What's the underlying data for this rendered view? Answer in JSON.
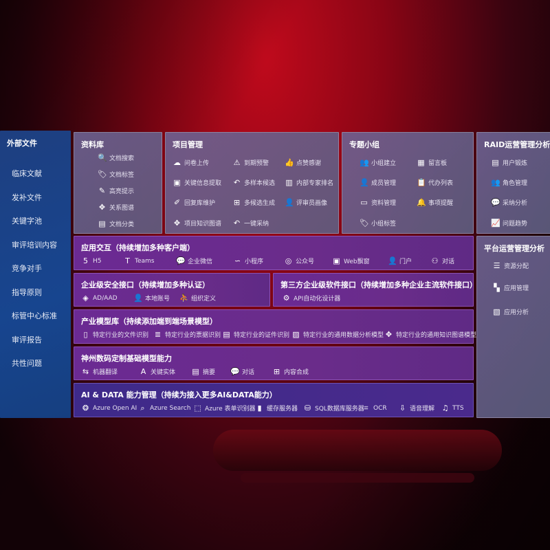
{
  "sidebar": {
    "title": "外部文件",
    "items": [
      "临床文献",
      "发补文件",
      "关键字池",
      "审评培训内容",
      "竞争对手",
      "指导原则",
      "标管中心标准",
      "审评报告",
      "共性问题"
    ]
  },
  "panels": {
    "library": {
      "title": "资料库",
      "items": [
        {
          "label": "文档搜索",
          "icon": "file-search-icon"
        },
        {
          "label": "文档标签",
          "icon": "tag-icon"
        },
        {
          "label": "高亮提示",
          "icon": "pen-icon"
        },
        {
          "label": "关系图谱",
          "icon": "graph-icon"
        },
        {
          "label": "文档分类",
          "icon": "document-stack-icon"
        }
      ]
    },
    "project": {
      "title": "项目管理",
      "items": [
        {
          "label": "问卷上传",
          "icon": "cloud-upload-icon"
        },
        {
          "label": "到期预警",
          "icon": "alarm-icon"
        },
        {
          "label": "点赞感谢",
          "icon": "thumbs-up-icon"
        },
        {
          "label": "关键信息提取",
          "icon": "window-icon"
        },
        {
          "label": "多样本候选",
          "icon": "reply-icon"
        },
        {
          "label": "内部专家排名",
          "icon": "podium-icon"
        },
        {
          "label": "回复库维护",
          "icon": "edit-icon"
        },
        {
          "label": "多候选生成",
          "icon": "puzzle-icon"
        },
        {
          "label": "评审员画像",
          "icon": "person-icon"
        },
        {
          "label": "项目知识图谱",
          "icon": "graph-icon"
        },
        {
          "label": "一键采纳",
          "icon": "reply-icon"
        }
      ]
    },
    "group": {
      "title": "专题小组",
      "items": [
        {
          "label": "小组建立",
          "icon": "group-icon"
        },
        {
          "label": "留言板",
          "icon": "bbs-icon"
        },
        {
          "label": "成员管理",
          "icon": "user-add-icon"
        },
        {
          "label": "代办列表",
          "icon": "clipboard-icon"
        },
        {
          "label": "资料管理",
          "icon": "folder-icon"
        },
        {
          "label": "事项提醒",
          "icon": "bell-icon"
        },
        {
          "label": "小组标签",
          "icon": "tag-icon"
        }
      ]
    },
    "raid": {
      "title": "RAID运营管理分析",
      "items": [
        {
          "label": "用户锻炼",
          "icon": "id-card-icon"
        },
        {
          "label": "角色管理",
          "icon": "users-icon"
        },
        {
          "label": "采纳分析",
          "icon": "qa-icon"
        },
        {
          "label": "问题趋势",
          "icon": "trend-icon"
        }
      ]
    },
    "platform": {
      "title": "平台运营管理分析",
      "items": [
        {
          "label": "资源分配",
          "icon": "checklist-icon"
        },
        {
          "label": "应用管理",
          "icon": "apps-icon"
        },
        {
          "label": "应用分析",
          "icon": "analysis-icon"
        }
      ]
    },
    "app": {
      "title": "应用交互（持续增加多种客户端）",
      "items": [
        {
          "label": "H5",
          "icon": "html5-icon"
        },
        {
          "label": "Teams",
          "icon": "teams-icon"
        },
        {
          "label": "企业微信",
          "icon": "wecom-icon"
        },
        {
          "label": "小程序",
          "icon": "miniprogram-icon"
        },
        {
          "label": "公众号",
          "icon": "official-account-icon"
        },
        {
          "label": "Web飘窗",
          "icon": "window-icon"
        },
        {
          "label": "门户",
          "icon": "portal-icon"
        },
        {
          "label": "对话",
          "icon": "chat-people-icon"
        }
      ]
    },
    "security": {
      "title": "企业级安全接口（持续增加多种认证）",
      "items": [
        {
          "label": "AD/AAD",
          "icon": "ad-icon"
        },
        {
          "label": "本地账号",
          "icon": "user-icon"
        },
        {
          "label": "组织定义",
          "icon": "org-icon"
        }
      ]
    },
    "thirdparty": {
      "title": "第三方企业级软件接口（持续增加多种企业主流软件接口）",
      "items": [
        {
          "label": "API自动化设计器",
          "icon": "gear-icon"
        }
      ]
    },
    "industry": {
      "title": "产业模型库（持续添加端到端场景模型）",
      "items": [
        {
          "label": "特定行业的文件识别",
          "icon": "file-icon"
        },
        {
          "label": "特定行业的票据识别",
          "icon": "receipt-icon"
        },
        {
          "label": "特定行业的证件识别",
          "icon": "id-card-icon"
        },
        {
          "label": "特定行业的通用数据分析模型",
          "icon": "image-icon"
        },
        {
          "label": "特定行业的通用知识图谱模型",
          "icon": "graph-icon"
        }
      ]
    },
    "base": {
      "title": "神州数码定制基础模型能力",
      "items": [
        {
          "label": "机器翻译",
          "icon": "translate-icon"
        },
        {
          "label": "关键实体",
          "icon": "entity-icon"
        },
        {
          "label": "摘要",
          "icon": "summary-icon"
        },
        {
          "label": "对话",
          "icon": "chat-icon"
        },
        {
          "label": "内容合成",
          "icon": "puzzle-icon"
        }
      ]
    },
    "ai": {
      "title": "AI & DATA 能力管理（持续为接入更多AI&DATA能力）",
      "items": [
        {
          "label": "Azure Open AI",
          "icon": "openai-icon"
        },
        {
          "label": "Azure Search",
          "icon": "search-doc-icon"
        },
        {
          "label": "Azure 表单识别器",
          "icon": "form-icon"
        },
        {
          "label": "缓存服务器",
          "icon": "cache-icon"
        },
        {
          "label": "SQL数据库服务器",
          "icon": "database-icon"
        },
        {
          "label": "OCR",
          "icon": "ocr-icon"
        },
        {
          "label": "语音理解",
          "icon": "speech-icon"
        },
        {
          "label": "TTS",
          "icon": "tts-icon"
        }
      ]
    }
  }
}
